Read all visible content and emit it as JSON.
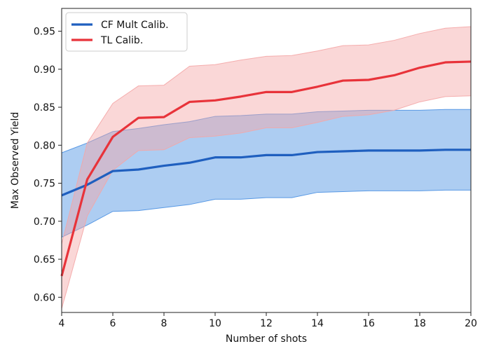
{
  "chart_data": {
    "type": "line",
    "title": "",
    "xlabel": "Number of shots",
    "ylabel": "Max Observed Yield",
    "xlim": [
      4,
      20
    ],
    "ylim": [
      0.58,
      0.98
    ],
    "xticks": [
      4,
      6,
      8,
      10,
      12,
      14,
      16,
      18,
      20
    ],
    "yticks": [
      0.6,
      0.65,
      0.7,
      0.75,
      0.8,
      0.85,
      0.9,
      0.95
    ],
    "grid": false,
    "legend_position": "top-left",
    "series": [
      {
        "name": "CF Mult Calib.",
        "color": "#1f5fbf",
        "band_color": "#4a90e2",
        "x": [
          4,
          5,
          6,
          7,
          8,
          9,
          10,
          11,
          12,
          13,
          14,
          15,
          16,
          17,
          18,
          19,
          20
        ],
        "mean": [
          0.734,
          0.748,
          0.766,
          0.768,
          0.773,
          0.777,
          0.784,
          0.784,
          0.787,
          0.787,
          0.791,
          0.792,
          0.793,
          0.793,
          0.793,
          0.794,
          0.794
        ],
        "upper": [
          0.79,
          0.803,
          0.818,
          0.822,
          0.827,
          0.831,
          0.838,
          0.839,
          0.841,
          0.841,
          0.844,
          0.845,
          0.846,
          0.846,
          0.846,
          0.847,
          0.847
        ],
        "lower": [
          0.679,
          0.695,
          0.713,
          0.714,
          0.718,
          0.722,
          0.729,
          0.729,
          0.731,
          0.731,
          0.738,
          0.739,
          0.74,
          0.74,
          0.74,
          0.741,
          0.741
        ]
      },
      {
        "name": "TL Calib.",
        "color": "#e8333a",
        "band_color": "#f4a6a6",
        "x": [
          4,
          5,
          6,
          7,
          8,
          9,
          10,
          11,
          12,
          13,
          14,
          15,
          16,
          17,
          18,
          19,
          20
        ],
        "mean": [
          0.628,
          0.755,
          0.811,
          0.836,
          0.837,
          0.857,
          0.859,
          0.864,
          0.87,
          0.87,
          0.877,
          0.885,
          0.886,
          0.892,
          0.902,
          0.909,
          0.91
        ],
        "upper": [
          0.67,
          0.803,
          0.855,
          0.878,
          0.879,
          0.904,
          0.906,
          0.912,
          0.917,
          0.918,
          0.924,
          0.931,
          0.932,
          0.938,
          0.947,
          0.954,
          0.956
        ],
        "lower": [
          0.585,
          0.707,
          0.767,
          0.793,
          0.794,
          0.81,
          0.812,
          0.816,
          0.823,
          0.823,
          0.83,
          0.838,
          0.84,
          0.846,
          0.857,
          0.864,
          0.865
        ]
      }
    ]
  }
}
